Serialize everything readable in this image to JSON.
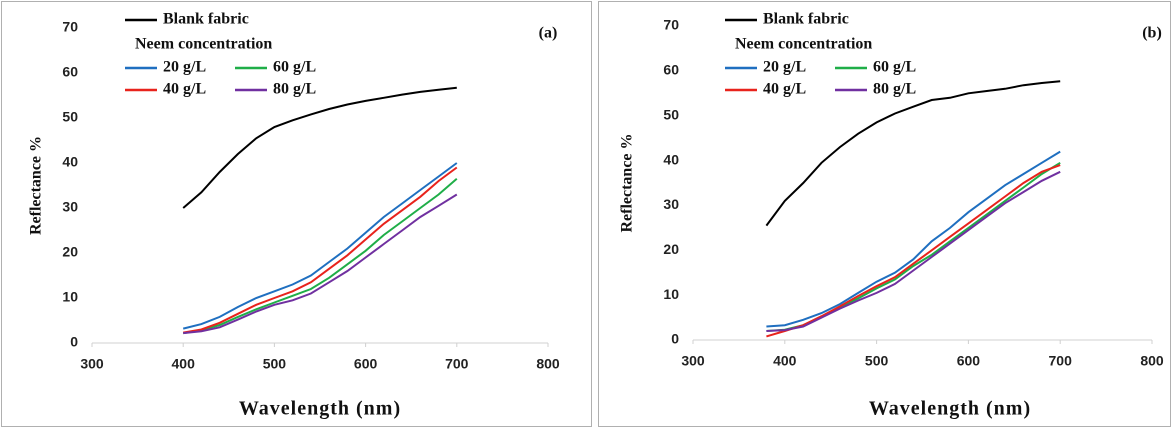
{
  "chart_data": [
    {
      "type": "line",
      "panel_label": "(a)",
      "x_label": "Wavelength (nm)",
      "y_label": "Reflectance %",
      "legend_title": "Neem concentration",
      "xlim": [
        300,
        800
      ],
      "xticks": [
        300,
        400,
        500,
        600,
        700,
        800
      ],
      "ylim": [
        0,
        70
      ],
      "yticks": [
        0,
        10,
        20,
        30,
        40,
        50,
        60,
        70
      ],
      "x": [
        400,
        420,
        440,
        460,
        480,
        500,
        520,
        540,
        560,
        580,
        600,
        620,
        640,
        660,
        680,
        700
      ],
      "series": [
        {
          "name": "Blank fabric",
          "color": "#000000",
          "values": [
            30,
            33.5,
            38,
            42,
            45.5,
            48,
            49.5,
            50.8,
            52,
            53,
            53.8,
            54.5,
            55.2,
            55.8,
            56.3,
            56.7
          ]
        },
        {
          "name": "20 g/L",
          "color": "#1f6fc0",
          "values": [
            3.2,
            4.2,
            5.8,
            8,
            10,
            11.5,
            13,
            15,
            18,
            21,
            24.5,
            28,
            31,
            34,
            37,
            40
          ]
        },
        {
          "name": "60 g/L",
          "color": "#1fae48",
          "values": [
            2.2,
            2.8,
            4,
            5.8,
            7.5,
            9,
            10.5,
            12,
            14.5,
            17.5,
            20.5,
            24,
            27,
            30,
            33,
            36.5
          ]
        },
        {
          "name": "40 g/L",
          "color": "#e8231c",
          "values": [
            2.3,
            3,
            4.5,
            6.5,
            8.5,
            10,
            11.5,
            13.5,
            16.5,
            19.5,
            23,
            26.5,
            29.5,
            32.5,
            36,
            39
          ]
        },
        {
          "name": "80 g/L",
          "color": "#7030a0",
          "values": [
            2.2,
            2.6,
            3.5,
            5.2,
            7,
            8.5,
            9.5,
            11,
            13.5,
            16,
            19,
            22,
            25,
            28,
            30.5,
            33
          ]
        }
      ]
    },
    {
      "type": "line",
      "panel_label": "(b)",
      "x_label": "Wavelength (nm)",
      "y_label": "Reflectance %",
      "legend_title": "Neem concentration",
      "xlim": [
        300,
        800
      ],
      "xticks": [
        300,
        400,
        500,
        600,
        700,
        800
      ],
      "ylim": [
        0,
        70
      ],
      "yticks": [
        0,
        10,
        20,
        30,
        40,
        50,
        60,
        70
      ],
      "x": [
        380,
        400,
        420,
        440,
        460,
        480,
        500,
        520,
        540,
        560,
        580,
        600,
        620,
        640,
        660,
        680,
        700
      ],
      "series": [
        {
          "name": "Blank fabric",
          "color": "#000000",
          "values": [
            25.5,
            31,
            35,
            39.5,
            43,
            46,
            48.5,
            50.5,
            52,
            53.5,
            54,
            55,
            55.5,
            56,
            56.8,
            57.3,
            57.7
          ]
        },
        {
          "name": "20 g/L",
          "color": "#1f6fc0",
          "values": [
            3,
            3.3,
            4.5,
            6,
            8,
            10.5,
            13,
            15,
            18,
            22,
            25,
            28.5,
            31.5,
            34.5,
            37,
            39.5,
            42
          ]
        },
        {
          "name": "60 g/L",
          "color": "#1fae48",
          "values": [
            2,
            2.3,
            3.3,
            5.2,
            7.3,
            9.3,
            11.5,
            13.5,
            16.5,
            19,
            22,
            25,
            28,
            31,
            34,
            37,
            39.5
          ]
        },
        {
          "name": "40 g/L",
          "color": "#e8231c",
          "values": [
            0.8,
            2,
            3.3,
            5.3,
            7.5,
            9.8,
            12,
            14,
            17,
            20,
            23,
            26,
            29,
            32,
            35,
            37.5,
            39
          ]
        },
        {
          "name": "80 g/L",
          "color": "#7030a0",
          "values": [
            2,
            2.2,
            3,
            5,
            7,
            8.8,
            10.5,
            12.5,
            15.5,
            18.5,
            21.5,
            24.5,
            27.5,
            30.5,
            33,
            35.5,
            37.5
          ]
        }
      ]
    }
  ]
}
